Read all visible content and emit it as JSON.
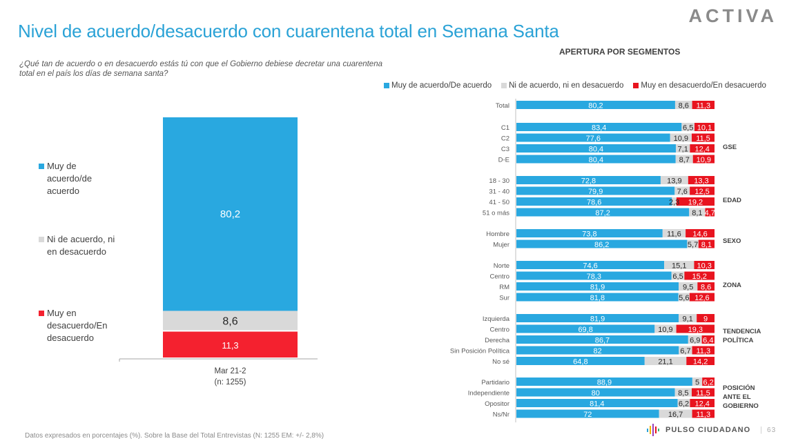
{
  "header": {
    "title": "Nivel de acuerdo/desacuerdo con cuarentena total en Semana Santa",
    "question": "¿Qué tan de acuerdo o en desacuerdo estás tú con que el Gobierno debiese decretar una cuarentena total en el país los días de semana santa?",
    "brand_logo": "ACTIVA"
  },
  "colors": {
    "agree": "#29a8e0",
    "neutral": "#d9d9d9",
    "disagree": "#e8141f",
    "disagree_left": "#f4212f",
    "title": "#2aa2d6"
  },
  "legend": {
    "agree": "Muy de acuerdo/De acuerdo",
    "neutral": "Ni de acuerdo, ni en desacuerdo",
    "disagree": "Muy en desacuerdo/En desacuerdo",
    "left_agree": "Muy de acuerdo/de acuerdo",
    "left_neutral": "Ni de acuerdo, ni en desacuerdo",
    "left_disagree": "Muy en desacuerdo/En desacuerdo"
  },
  "segments_title": "APERTURA POR SEGMENTOS",
  "footer": {
    "note": "Datos expresados en porcentajes (%). Sobre la Base del Total Entrevistas (N: 1255  EM: +/- 2,8%)",
    "brand": "PULSO CIUDADANO",
    "page": "63"
  },
  "chart_data": [
    {
      "type": "bar",
      "stacked": true,
      "orientation": "vertical",
      "categories": [
        "Mar 21-2"
      ],
      "category_sublabels": [
        "(n: 1255)"
      ],
      "series": [
        {
          "name": "Muy en desacuerdo/En desacuerdo",
          "values": [
            11.3
          ],
          "labels": [
            "11,3"
          ]
        },
        {
          "name": "Ni de acuerdo, ni en desacuerdo",
          "values": [
            8.6
          ],
          "labels": [
            "8,6"
          ]
        },
        {
          "name": "Muy de acuerdo/de acuerdo",
          "values": [
            80.2
          ],
          "labels": [
            "80,2"
          ]
        }
      ],
      "legend_position": "left",
      "ylim": [
        0,
        100
      ]
    },
    {
      "type": "bar",
      "stacked": true,
      "orientation": "horizontal",
      "title": "APERTURA POR SEGMENTOS",
      "legend_position": "top",
      "xlim": [
        0,
        100
      ],
      "groups": [
        {
          "name": "",
          "rows": [
            {
              "label": "Total",
              "agree": 80.2,
              "neutral": 8.6,
              "disagree": 11.3,
              "agree_l": "80,2",
              "neutral_l": "8,6",
              "disagree_l": "11,3"
            }
          ]
        },
        {
          "name": "GSE",
          "rows": [
            {
              "label": "C1",
              "agree": 83.4,
              "neutral": 6.5,
              "disagree": 10.1,
              "agree_l": "83,4",
              "neutral_l": "6,5",
              "disagree_l": "10,1"
            },
            {
              "label": "C2",
              "agree": 77.6,
              "neutral": 10.9,
              "disagree": 11.5,
              "agree_l": "77,6",
              "neutral_l": "10,9",
              "disagree_l": "11,5"
            },
            {
              "label": "C3",
              "agree": 80.4,
              "neutral": 7.1,
              "disagree": 12.4,
              "agree_l": "80,4",
              "neutral_l": "7,1",
              "disagree_l": "12,4"
            },
            {
              "label": "D-E",
              "agree": 80.4,
              "neutral": 8.7,
              "disagree": 10.9,
              "agree_l": "80,4",
              "neutral_l": "8,7",
              "disagree_l": "10,9"
            }
          ]
        },
        {
          "name": "EDAD",
          "rows": [
            {
              "label": "18 - 30",
              "agree": 72.8,
              "neutral": 13.9,
              "disagree": 13.3,
              "agree_l": "72,8",
              "neutral_l": "13,9",
              "disagree_l": "13,3"
            },
            {
              "label": "31 - 40",
              "agree": 79.9,
              "neutral": 7.6,
              "disagree": 12.5,
              "agree_l": "79,9",
              "neutral_l": "7,6",
              "disagree_l": "12,5"
            },
            {
              "label": "41 - 50",
              "agree": 78.6,
              "neutral": 2.3,
              "disagree": 19.2,
              "agree_l": "78,6",
              "neutral_l": "2,3",
              "disagree_l": "19,2"
            },
            {
              "label": "51 o más",
              "agree": 87.2,
              "neutral": 8.1,
              "disagree": 4.7,
              "agree_l": "87,2",
              "neutral_l": "8,1",
              "disagree_l": "4,7"
            }
          ]
        },
        {
          "name": "SEXO",
          "rows": [
            {
              "label": "Hombre",
              "agree": 73.8,
              "neutral": 11.6,
              "disagree": 14.6,
              "agree_l": "73,8",
              "neutral_l": "11,6",
              "disagree_l": "14,6"
            },
            {
              "label": "Mujer",
              "agree": 86.2,
              "neutral": 5.7,
              "disagree": 8.1,
              "agree_l": "86,2",
              "neutral_l": "5,7",
              "disagree_l": "8,1"
            }
          ]
        },
        {
          "name": "ZONA",
          "rows": [
            {
              "label": "Norte",
              "agree": 74.6,
              "neutral": 15.1,
              "disagree": 10.3,
              "agree_l": "74,6",
              "neutral_l": "15,1",
              "disagree_l": "10,3"
            },
            {
              "label": "Centro",
              "agree": 78.3,
              "neutral": 6.5,
              "disagree": 15.2,
              "agree_l": "78,3",
              "neutral_l": "6,5",
              "disagree_l": "15,2"
            },
            {
              "label": "RM",
              "agree": 81.9,
              "neutral": 9.5,
              "disagree": 8.6,
              "agree_l": "81,9",
              "neutral_l": "9,5",
              "disagree_l": "8,6"
            },
            {
              "label": "Sur",
              "agree": 81.8,
              "neutral": 5.6,
              "disagree": 12.6,
              "agree_l": "81,8",
              "neutral_l": "5,6",
              "disagree_l": "12,6"
            }
          ]
        },
        {
          "name": "TENDENCIA POLÍTICA",
          "rows": [
            {
              "label": "Izquierda",
              "agree": 81.9,
              "neutral": 9.1,
              "disagree": 9,
              "agree_l": "81,9",
              "neutral_l": "9,1",
              "disagree_l": "9"
            },
            {
              "label": "Centro",
              "agree": 69.8,
              "neutral": 10.9,
              "disagree": 19.3,
              "agree_l": "69,8",
              "neutral_l": "10,9",
              "disagree_l": "19,3"
            },
            {
              "label": "Derecha",
              "agree": 86.7,
              "neutral": 6.9,
              "disagree": 6.4,
              "agree_l": "86,7",
              "neutral_l": "6,9",
              "disagree_l": "6,4"
            },
            {
              "label": "Sin Posición Política",
              "agree": 82,
              "neutral": 6.7,
              "disagree": 11.3,
              "agree_l": "82",
              "neutral_l": "6,7",
              "disagree_l": "11,3"
            },
            {
              "label": "No sé",
              "agree": 64.8,
              "neutral": 21.1,
              "disagree": 14.2,
              "agree_l": "64,8",
              "neutral_l": "21,1",
              "disagree_l": "14,2"
            }
          ]
        },
        {
          "name": "POSICIÓN ANTE EL GOBIERNO",
          "rows": [
            {
              "label": "Partidario",
              "agree": 88.9,
              "neutral": 5,
              "disagree": 6.2,
              "agree_l": "88,9",
              "neutral_l": "5",
              "disagree_l": "6,2"
            },
            {
              "label": "Independiente",
              "agree": 80,
              "neutral": 8.5,
              "disagree": 11.5,
              "agree_l": "80",
              "neutral_l": "8,5",
              "disagree_l": "11,5"
            },
            {
              "label": "Opositor",
              "agree": 81.4,
              "neutral": 6.2,
              "disagree": 12.4,
              "agree_l": "81,4",
              "neutral_l": "6,2",
              "disagree_l": "12,4"
            },
            {
              "label": "Ns/Nr",
              "agree": 72,
              "neutral": 16.7,
              "disagree": 11.3,
              "agree_l": "72",
              "neutral_l": "16,7",
              "disagree_l": "11,3"
            }
          ]
        }
      ]
    }
  ]
}
